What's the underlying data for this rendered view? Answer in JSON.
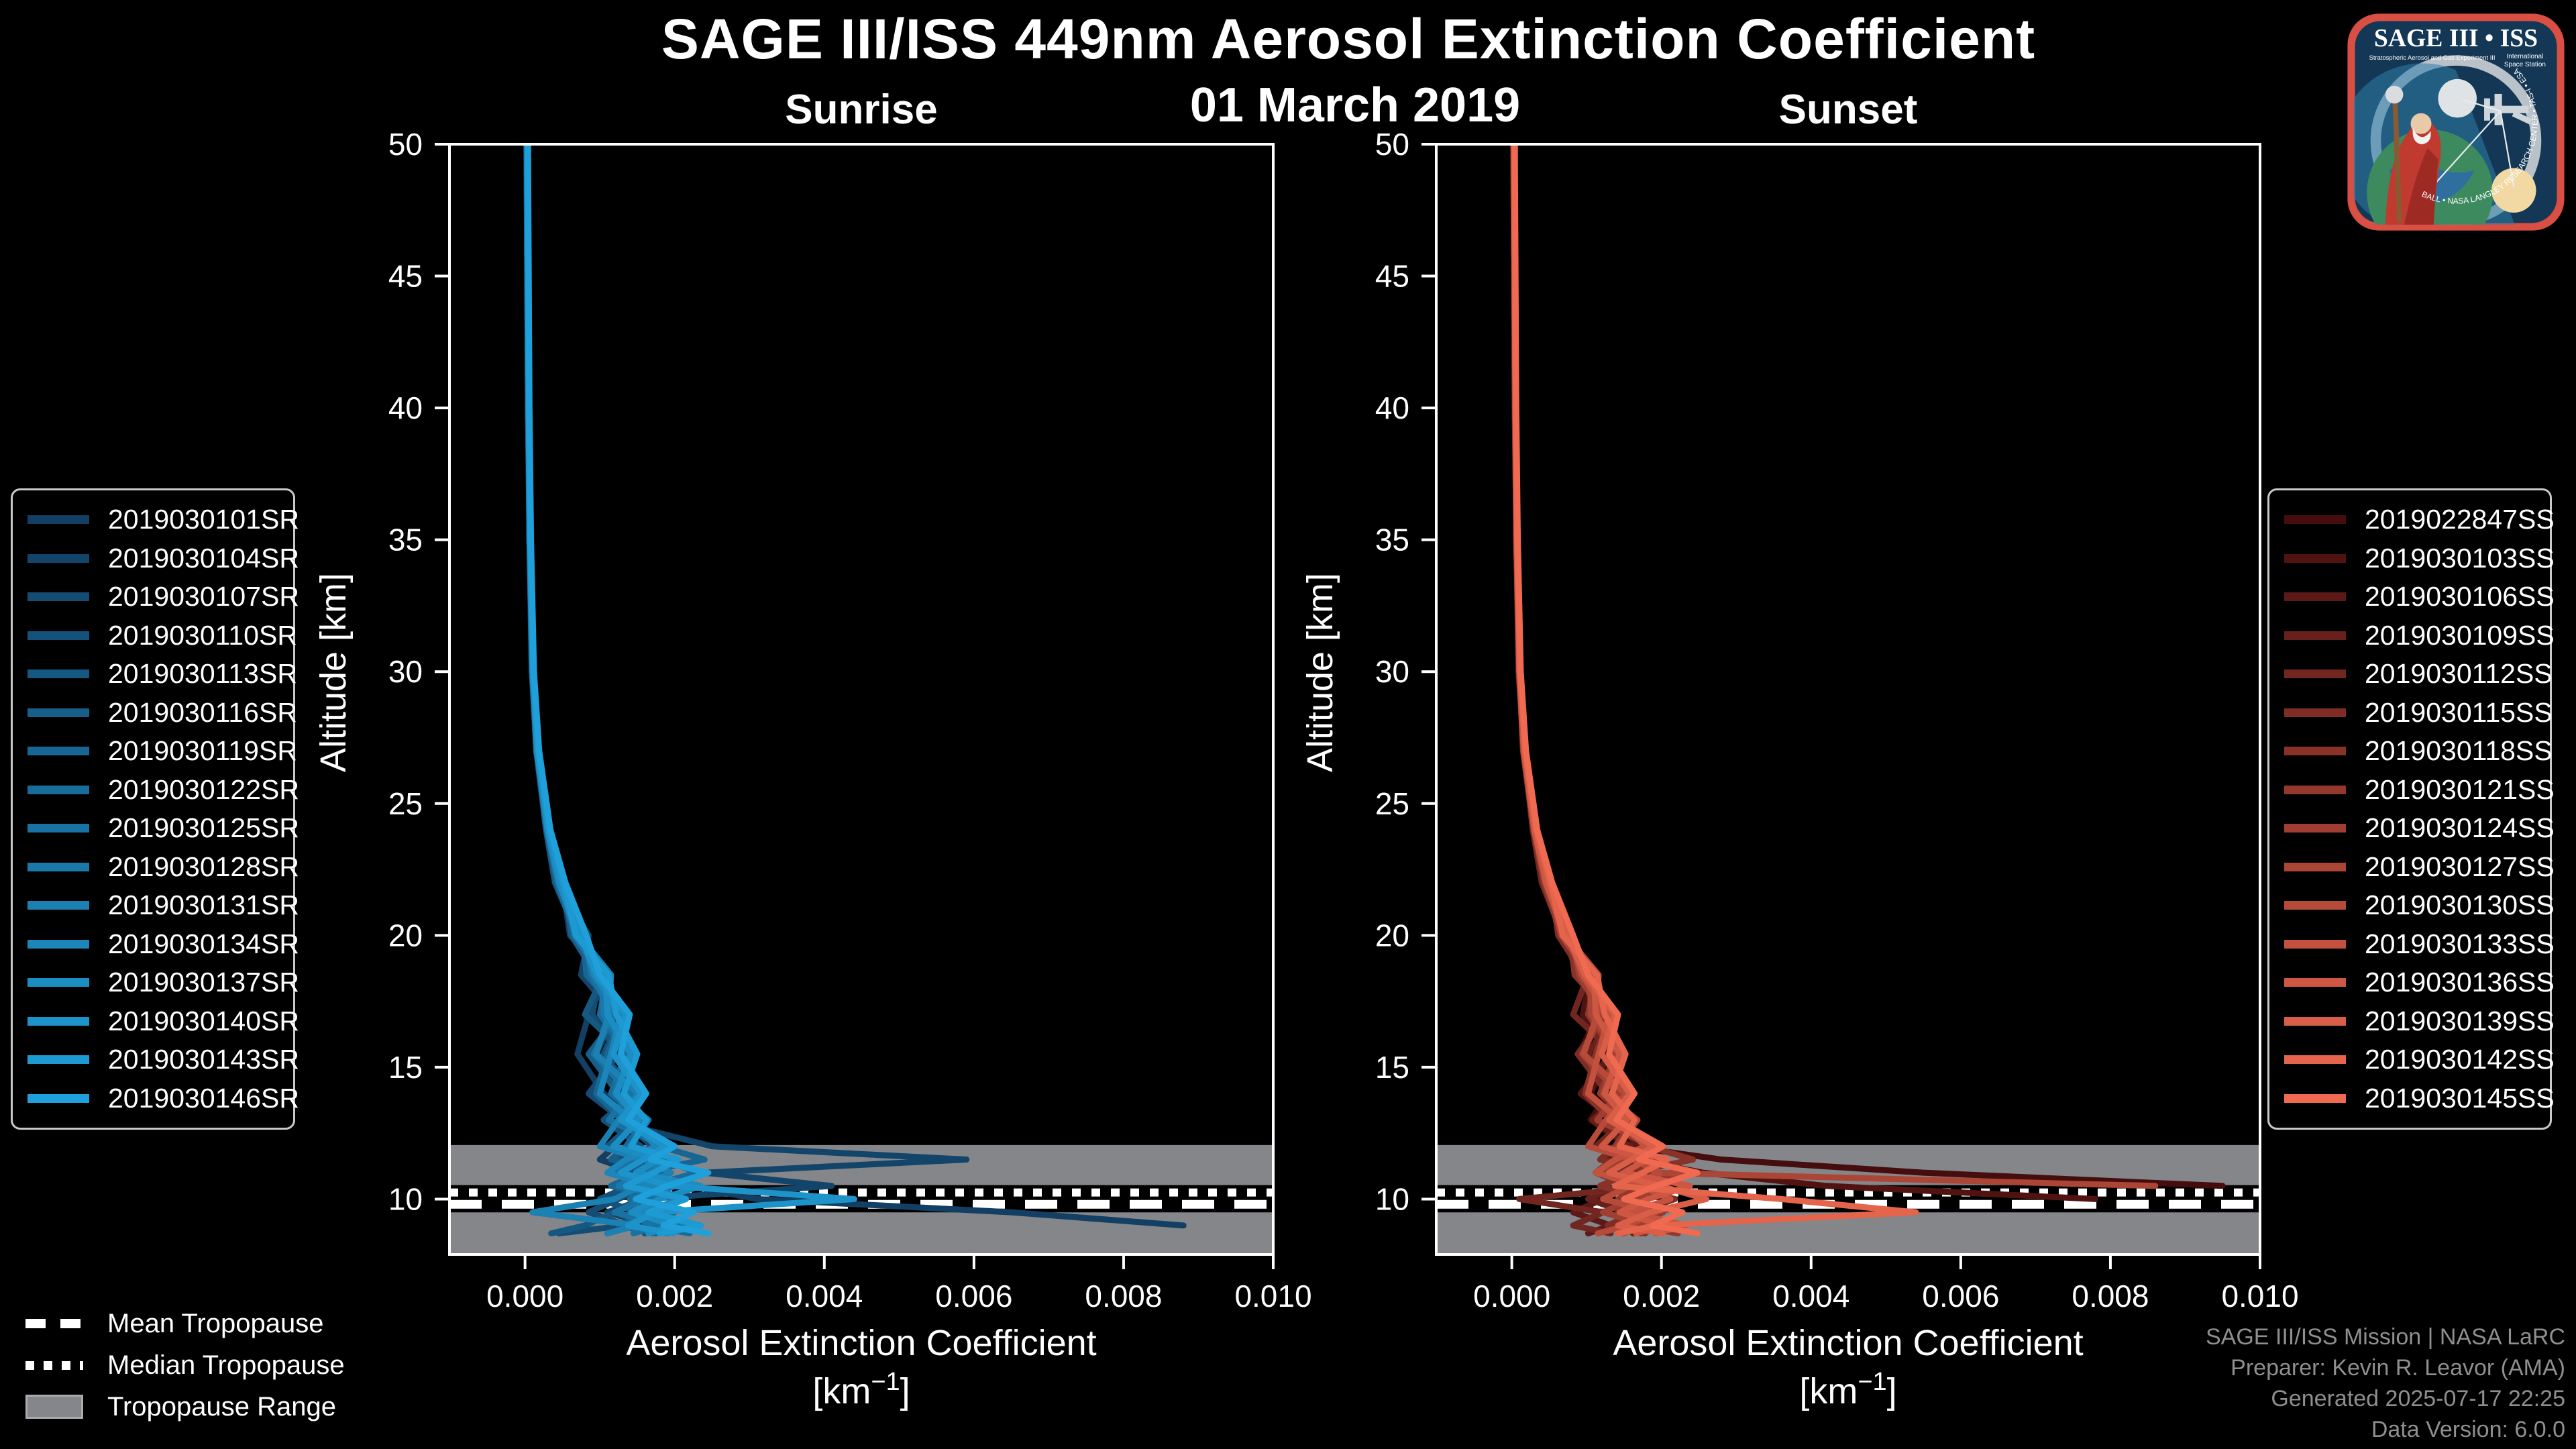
{
  "header": {
    "title": "SAGE III/ISS 449nm Aerosol Extinction Coefficient",
    "date": "01 March 2019"
  },
  "chart_data": {
    "type": "line",
    "title": "SAGE III/ISS 449nm Aerosol Extinction Coefficient",
    "subtitle": "01 March 2019",
    "xlabel": "Aerosol Extinction Coefficient",
    "xlabel_unit": {
      "open": "[km",
      "sup": "−1",
      "close": "]"
    },
    "ylabel": "Altitude [km]",
    "x_ticks": [
      "0.000",
      "0.002",
      "0.004",
      "0.006",
      "0.008",
      "0.010"
    ],
    "y_ticks": [
      "10",
      "15",
      "20",
      "25",
      "30",
      "35",
      "40",
      "45",
      "50"
    ],
    "xlim": [
      -0.00101,
      0.01
    ],
    "ylim": [
      7.9,
      50
    ],
    "grid": false,
    "x_scale": 0.001,
    "altitudes_km": [
      50,
      45,
      40,
      35,
      30,
      27,
      24,
      22,
      20,
      18.5,
      17,
      15.5,
      14,
      13,
      12,
      11.5,
      11,
      10.5,
      10,
      9.5,
      9,
      8.7
    ],
    "tropopause": {
      "mean_km": 9.8,
      "median_km": 10.25,
      "range_km": [
        7.95,
        12.05
      ]
    },
    "panels": [
      {
        "key": "sunrise",
        "title": "Sunrise",
        "color_start": "#123f63",
        "color_end": "#1fa0da",
        "series": [
          {
            "label": "2019030101SR",
            "x": [
              0.02,
              0.03,
              0.05,
              0.06,
              0.09,
              0.15,
              0.28,
              0.5,
              0.6,
              1.1,
              0.85,
              0.7,
              1.05,
              1.5,
              1.2,
              1.0,
              1.5,
              2.2,
              3.1,
              6.5,
              8.8,
              null
            ]
          },
          {
            "label": "2019030104SR",
            "x": [
              0.03,
              0.04,
              0.05,
              0.07,
              0.11,
              0.17,
              0.32,
              0.42,
              0.85,
              0.75,
              1.2,
              0.95,
              1.35,
              1.1,
              2.5,
              5.9,
              2.4,
              4.1,
              1.6,
              1.1,
              1.7,
              1.9
            ]
          },
          {
            "label": "2019030107SR",
            "x": [
              0.03,
              0.04,
              0.05,
              0.07,
              0.1,
              0.16,
              0.29,
              0.48,
              0.65,
              1.0,
              0.9,
              1.25,
              0.85,
              1.3,
              1.7,
              1.4,
              1.15,
              1.6,
              1.25,
              0.85,
              1.35,
              0.45
            ]
          },
          {
            "label": "2019030110SR",
            "x": [
              0.02,
              0.03,
              0.05,
              0.06,
              0.1,
              0.15,
              0.31,
              0.44,
              0.75,
              0.9,
              1.3,
              1.05,
              1.45,
              1.05,
              1.55,
              1.25,
              1.8,
              1.4,
              1.0,
              1.5,
              1.9,
              1.6
            ]
          },
          {
            "label": "2019030113SR",
            "x": [
              0.03,
              0.03,
              0.04,
              0.06,
              0.09,
              0.16,
              0.28,
              0.4,
              0.7,
              1.05,
              0.8,
              1.35,
              1.15,
              1.5,
              1.1,
              1.65,
              1.3,
              1.95,
              1.55,
              1.2,
              0.8,
              0.35
            ]
          },
          {
            "label": "2019030116SR",
            "x": [
              0.03,
              0.04,
              0.05,
              0.07,
              0.11,
              0.18,
              0.33,
              0.52,
              0.62,
              0.95,
              1.25,
              0.85,
              1.25,
              1.6,
              1.35,
              1.15,
              1.85,
              1.45,
              2.15,
              1.65,
              1.25,
              1.75
            ]
          },
          {
            "label": "2019030119SR",
            "x": [
              0.03,
              0.04,
              0.05,
              0.06,
              0.1,
              0.16,
              0.3,
              0.46,
              0.78,
              0.82,
              1.3,
              1.1,
              0.95,
              1.3,
              1.8,
              2.4,
              1.55,
              1.15,
              1.8,
              1.4,
              2.1,
              1.7
            ]
          },
          {
            "label": "2019030122SR",
            "x": [
              0.02,
              0.03,
              0.04,
              0.06,
              0.1,
              0.15,
              0.29,
              0.43,
              0.68,
              1.1,
              1.0,
              1.35,
              1.15,
              1.6,
              1.35,
              1.85,
              2.3,
              1.65,
              1.4,
              2.0,
              1.6,
              2.2
            ]
          },
          {
            "label": "2019030125SR",
            "x": [
              0.03,
              0.04,
              0.05,
              0.07,
              0.1,
              0.17,
              0.31,
              0.47,
              0.8,
              0.88,
              1.18,
              0.92,
              1.4,
              1.12,
              1.85,
              1.45,
              1.18,
              2.0,
              1.6,
              1.2,
              1.8,
              1.45
            ]
          },
          {
            "label": "2019030128SR",
            "x": [
              0.03,
              0.04,
              0.05,
              0.07,
              0.11,
              0.17,
              0.32,
              0.5,
              0.66,
              1.02,
              1.05,
              1.4,
              1.2,
              1.65,
              1.4,
              1.95,
              1.6,
              1.25,
              2.05,
              1.7,
              1.35,
              1.9
            ]
          },
          {
            "label": "2019030131SR",
            "x": [
              0.03,
              0.04,
              0.05,
              0.06,
              0.1,
              0.16,
              0.3,
              0.45,
              0.72,
              1.15,
              1.12,
              0.95,
              1.5,
              1.25,
              1.0,
              1.6,
              1.95,
              1.55,
              1.2,
              0.1,
              1.5,
              1.1
            ]
          },
          {
            "label": "2019030134SR",
            "x": [
              0.03,
              0.04,
              0.05,
              0.07,
              0.11,
              0.17,
              0.31,
              0.48,
              0.76,
              0.92,
              1.28,
              1.15,
              1.0,
              1.42,
              1.75,
              1.35,
              1.1,
              1.7,
              2.1,
              1.55,
              2.3,
              1.9
            ]
          },
          {
            "label": "2019030137SR",
            "x": [
              0.03,
              0.04,
              0.05,
              0.07,
              0.1,
              0.16,
              0.3,
              0.46,
              0.7,
              1.08,
              1.1,
              1.42,
              1.22,
              1.52,
              1.18,
              1.78,
              1.48,
              2.35,
              1.8,
              1.42,
              2.0,
              1.65
            ]
          },
          {
            "label": "2019030140SR",
            "x": [
              0.03,
              0.04,
              0.05,
              0.07,
              0.11,
              0.18,
              0.32,
              0.5,
              0.74,
              0.96,
              1.35,
              1.18,
              1.55,
              1.28,
              1.88,
              1.58,
              1.28,
              1.95,
              4.4,
              1.75,
              1.38,
              1.98
            ]
          },
          {
            "label": "2019030143SR",
            "x": [
              0.04,
              0.04,
              0.05,
              0.07,
              0.11,
              0.18,
              0.33,
              0.52,
              0.68,
              1.12,
              1.22,
              1.5,
              1.32,
              1.62,
              1.42,
              2.05,
              1.72,
              1.35,
              2.15,
              1.65,
              2.35,
              1.8
            ]
          },
          {
            "label": "2019030146SR",
            "x": [
              0.04,
              0.05,
              0.06,
              0.08,
              0.12,
              0.19,
              0.34,
              0.54,
              0.82,
              1.0,
              1.4,
              1.28,
              1.62,
              1.38,
              2.0,
              1.68,
              2.45,
              1.9,
              1.48,
              2.25,
              1.85,
              2.45
            ]
          }
        ]
      },
      {
        "key": "sunset",
        "title": "Sunset",
        "color_start": "#450d0e",
        "color_end": "#ef6a50",
        "series": [
          {
            "label": "2019022847SS",
            "x": [
              0.03,
              0.04,
              0.05,
              0.06,
              0.1,
              0.16,
              0.3,
              0.46,
              0.72,
              0.92,
              1.15,
              0.9,
              1.3,
              1.05,
              1.55,
              2.8,
              5.5,
              9.5,
              null,
              null,
              null,
              null
            ]
          },
          {
            "label": "2019030103SS",
            "x": [
              0.03,
              0.04,
              0.05,
              0.07,
              0.11,
              0.17,
              0.32,
              0.48,
              0.64,
              1.05,
              0.95,
              1.3,
              1.05,
              1.4,
              1.25,
              1.65,
              2.55,
              4.2,
              7.8,
              null,
              null,
              null
            ]
          },
          {
            "label": "2019030106SS",
            "x": [
              0.03,
              0.04,
              0.05,
              0.07,
              0.1,
              0.16,
              0.29,
              0.44,
              0.74,
              0.98,
              1.08,
              1.32,
              0.92,
              1.38,
              1.68,
              1.35,
              1.12,
              1.58,
              1.22,
              0.82,
              1.32,
              1.02
            ]
          },
          {
            "label": "2019030109SS",
            "x": [
              0.02,
              0.03,
              0.05,
              0.06,
              0.1,
              0.15,
              0.3,
              0.42,
              0.7,
              0.88,
              1.35,
              1.02,
              1.48,
              1.08,
              1.58,
              1.28,
              1.85,
              1.42,
              1.02,
              1.52,
              1.92,
              1.62
            ]
          },
          {
            "label": "2019030112SS",
            "x": [
              0.03,
              0.03,
              0.04,
              0.06,
              0.09,
              0.16,
              0.28,
              0.4,
              0.68,
              1.02,
              0.82,
              1.38,
              1.18,
              1.52,
              1.12,
              1.68,
              1.32,
              1.95,
              0.1,
              1.22,
              0.82,
              1.32
            ]
          },
          {
            "label": "2019030115SS",
            "x": [
              0.03,
              0.04,
              0.05,
              0.07,
              0.11,
              0.18,
              0.33,
              0.52,
              0.62,
              0.96,
              1.28,
              0.88,
              1.28,
              1.62,
              1.38,
              1.18,
              1.88,
              1.48,
              2.18,
              1.68,
              1.28,
              1.78
            ]
          },
          {
            "label": "2019030118SS",
            "x": [
              0.03,
              0.04,
              0.05,
              0.06,
              0.1,
              0.16,
              0.3,
              0.46,
              0.78,
              0.84,
              1.32,
              1.12,
              0.98,
              1.32,
              1.82,
              2.42,
              1.58,
              1.18,
              1.82,
              1.42,
              2.12,
              1.72
            ]
          },
          {
            "label": "2019030121SS",
            "x": [
              0.02,
              0.03,
              0.04,
              0.06,
              0.1,
              0.15,
              0.29,
              0.43,
              0.66,
              1.12,
              1.02,
              1.38,
              1.18,
              1.62,
              1.38,
              1.88,
              2.32,
              1.68,
              1.42,
              2.02,
              1.62,
              2.22
            ]
          },
          {
            "label": "2019030124SS",
            "x": [
              0.03,
              0.04,
              0.05,
              0.07,
              0.1,
              0.17,
              0.31,
              0.47,
              0.8,
              0.9,
              1.2,
              0.94,
              1.42,
              1.14,
              1.88,
              1.48,
              1.2,
              2.02,
              1.62,
              1.22,
              1.82,
              1.48
            ]
          },
          {
            "label": "2019030127SS",
            "x": [
              0.03,
              0.04,
              0.05,
              0.07,
              0.11,
              0.17,
              0.32,
              0.5,
              0.66,
              1.04,
              1.06,
              1.42,
              1.22,
              1.68,
              1.42,
              1.98,
              1.9,
              8.6,
              null,
              null,
              null,
              null
            ]
          },
          {
            "label": "2019030130SS",
            "x": [
              0.03,
              0.04,
              0.05,
              0.06,
              0.1,
              0.16,
              0.3,
              0.45,
              0.72,
              1.16,
              1.14,
              0.96,
              1.52,
              1.26,
              1.02,
              1.62,
              1.98,
              1.58,
              1.22,
              1.92,
              1.55,
              1.15
            ]
          },
          {
            "label": "2019030133SS",
            "x": [
              0.03,
              0.04,
              0.05,
              0.07,
              0.11,
              0.17,
              0.31,
              0.48,
              0.76,
              0.94,
              1.3,
              1.16,
              1.02,
              1.44,
              1.78,
              1.38,
              1.12,
              1.72,
              2.12,
              1.58,
              2.32,
              1.92
            ]
          },
          {
            "label": "2019030136SS",
            "x": [
              0.03,
              0.04,
              0.05,
              0.07,
              0.1,
              0.16,
              0.3,
              0.46,
              0.7,
              1.1,
              1.12,
              1.44,
              1.24,
              1.54,
              1.2,
              1.8,
              1.5,
              2.38,
              1.82,
              1.44,
              2.02,
              1.66
            ]
          },
          {
            "label": "2019030139SS",
            "x": [
              0.03,
              0.04,
              0.05,
              0.07,
              0.11,
              0.18,
              0.32,
              0.5,
              0.74,
              0.98,
              1.38,
              1.2,
              1.58,
              1.3,
              1.9,
              1.6,
              1.3,
              1.98,
              2.6,
              1.85,
              1.42,
              2.02
            ]
          },
          {
            "label": "2019030142SS",
            "x": [
              0.04,
              0.04,
              0.05,
              0.07,
              0.11,
              0.18,
              0.33,
              0.52,
              0.68,
              1.14,
              1.24,
              1.52,
              1.34,
              1.64,
              1.44,
              2.08,
              1.75,
              1.38,
              3.6,
              5.4,
              1.92,
              1.42
            ]
          },
          {
            "label": "2019030145SS",
            "x": [
              0.04,
              0.05,
              0.06,
              0.08,
              0.12,
              0.19,
              0.34,
              0.54,
              0.82,
              1.02,
              1.42,
              1.3,
              1.64,
              1.4,
              2.02,
              1.7,
              2.48,
              1.92,
              1.5,
              2.28,
              1.88,
              2.48
            ]
          }
        ]
      }
    ]
  },
  "tropopause_legend": {
    "mean": "Mean Tropopause",
    "median": "Median Tropopause",
    "range": "Tropopause Range"
  },
  "footer": {
    "lines": [
      "SAGE III/ISS Mission | NASA LaRC",
      "Preparer: Kevin R. Leavor (AMA)",
      "Generated 2025-07-17 22:25",
      "Data Version: 6.0.0"
    ]
  },
  "logo": {
    "title": "SAGE III • ISS",
    "sub_left": "Stratospheric Aerosol and Gas Experiment III",
    "sub_right_1": "International",
    "sub_right_2": "Space Station",
    "ring_text": "BALL • NASA LANGLEY RESEARCH CENTER • TAS-I • ESA"
  },
  "colors": {
    "background": "#000000",
    "axis": "#ffffff",
    "text": "#ffffff",
    "tropopause_band": "#84868a",
    "tropopause_lines": "#ffffff",
    "footer_text": "#8f8f8f",
    "legend_border": "#c9c9c9"
  }
}
